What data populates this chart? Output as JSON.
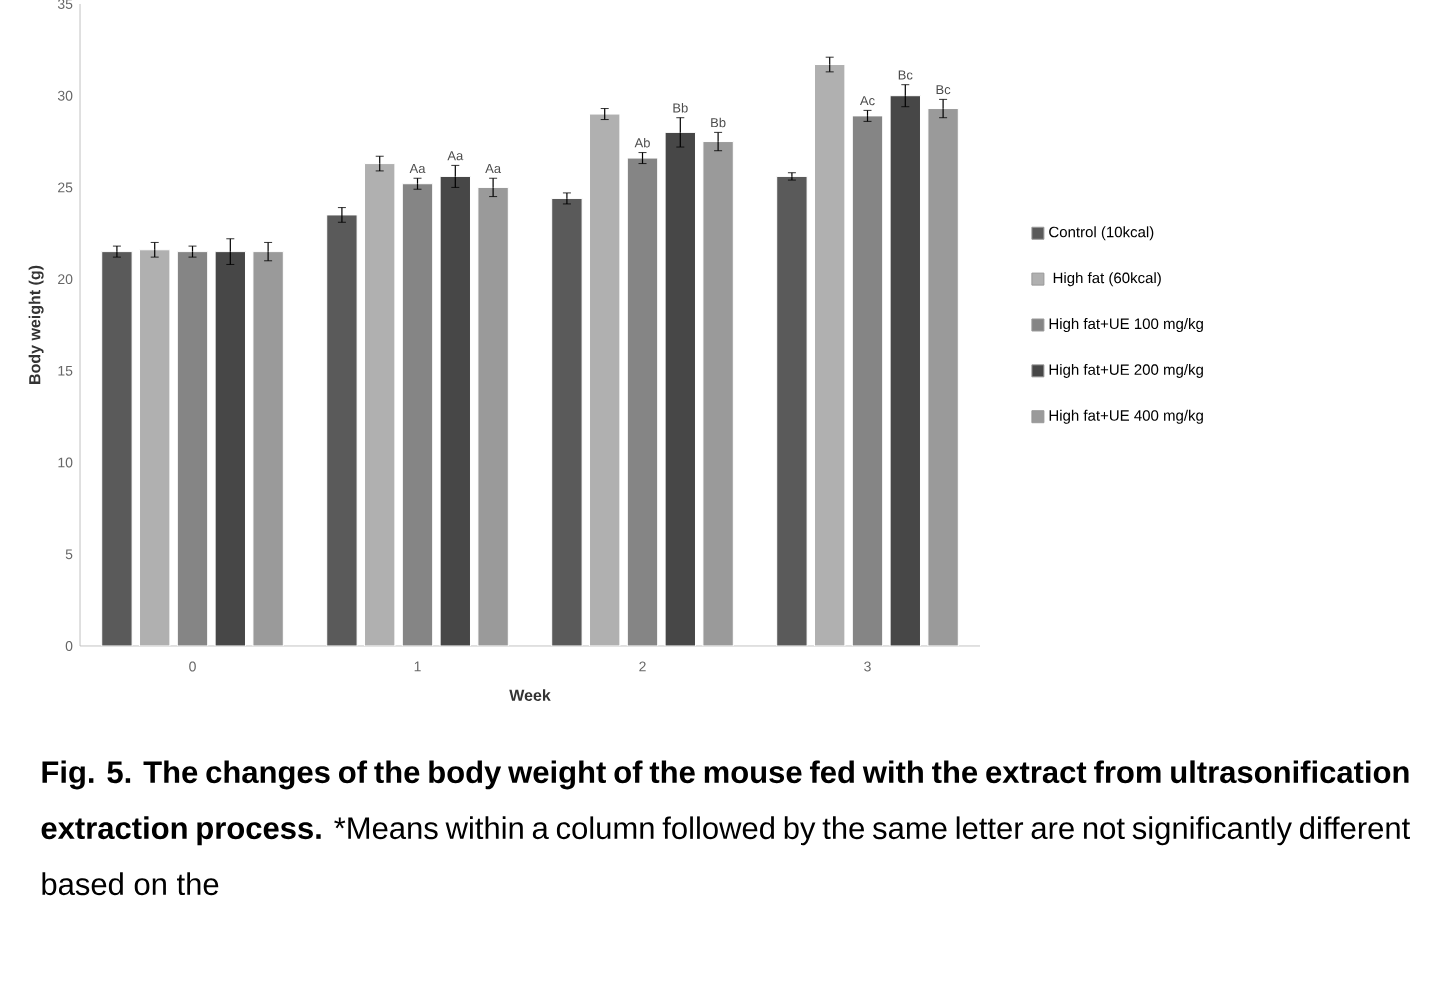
{
  "chart_data": {
    "type": "bar",
    "title": "Fig. 5. The changes of the body weight of the mouse fed with the extract from ultrasonification extraction process.",
    "xlabel": "Week",
    "ylabel": "Body weight (g)",
    "categories": [
      "0",
      "1",
      "2",
      "3"
    ],
    "series": [
      {
        "name": "Control (10kcal)",
        "color": "#5a5a5a",
        "values": [
          21.5,
          23.5,
          24.4,
          25.6
        ],
        "errors": [
          0.3,
          0.4,
          0.3,
          0.2
        ]
      },
      {
        "name": " High fat (60kcal)",
        "color": "#b0b0b0",
        "values": [
          21.6,
          26.3,
          29.0,
          31.7
        ],
        "errors": [
          0.4,
          0.4,
          0.3,
          0.4
        ]
      },
      {
        "name": "High fat+UE 100 mg/kg",
        "color": "#858585",
        "values": [
          21.5,
          25.2,
          26.6,
          28.9
        ],
        "errors": [
          0.3,
          0.3,
          0.3,
          0.3
        ],
        "value_labels": [
          null,
          "Aa",
          "Ab",
          "Ac"
        ]
      },
      {
        "name": "High fat+UE 200 mg/kg",
        "color": "#474747",
        "values": [
          21.5,
          25.6,
          28.0,
          30.0
        ],
        "errors": [
          0.7,
          0.6,
          0.8,
          0.6
        ],
        "value_labels": [
          null,
          "Aa",
          "Bb",
          "Bc"
        ]
      },
      {
        "name": "High fat+UE 400 mg/kg",
        "color": "#9a9a9a",
        "values": [
          21.5,
          25.0,
          27.5,
          29.3
        ],
        "errors": [
          0.5,
          0.5,
          0.5,
          0.5
        ],
        "value_labels": [
          null,
          "Aa",
          "Bb",
          "Bc"
        ]
      }
    ],
    "ylim": [
      0,
      35
    ],
    "yticks": [
      0,
      5,
      10,
      15,
      20,
      25,
      30,
      35
    ],
    "legend": "right",
    "annotations": [
      "*Means within a column followed by the same letter are not significantly different based on the"
    ]
  }
}
